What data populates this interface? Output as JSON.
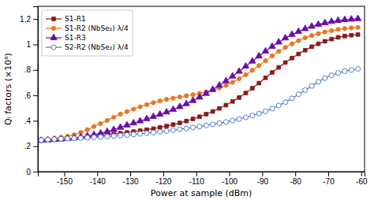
{
  "chart_data": {
    "type": "line",
    "xlabel": "Power at sample (dBm)",
    "ylabel": "Qᵢ factors (×10⁶)",
    "xlim": [
      -158,
      -59
    ],
    "ylim": [
      0,
      1.3
    ],
    "xticks": [
      -150,
      -140,
      -130,
      -120,
      -110,
      -100,
      -90,
      -80,
      -70,
      -60
    ],
    "yticks": [
      0,
      {
        "value": 0.2,
        "label": ".2"
      },
      {
        "value": 0.4,
        "label": ".4"
      },
      {
        "value": 0.6,
        "label": ".6"
      },
      {
        "value": 0.8,
        "label": ".8"
      },
      1,
      1.2
    ],
    "grid": false,
    "legend": "upper left",
    "x": [
      -157,
      -155,
      -153,
      -151,
      -149,
      -147,
      -145,
      -143,
      -141,
      -139,
      -137,
      -135,
      -133,
      -131,
      -129,
      -127,
      -125,
      -123,
      -121,
      -119,
      -117,
      -115,
      -113,
      -111,
      -109,
      -107,
      -105,
      -103,
      -101,
      -99,
      -97,
      -95,
      -93,
      -91,
      -89,
      -87,
      -85,
      -83,
      -81,
      -79,
      -77,
      -75,
      -73,
      -71,
      -69,
      -67,
      -65,
      -63,
      -61
    ],
    "series": [
      {
        "name": "S1-R1",
        "color": "#8B1A1A",
        "marker": "square",
        "values": [
          0.245,
          0.25,
          0.252,
          0.255,
          0.26,
          0.263,
          0.267,
          0.272,
          0.278,
          0.283,
          0.29,
          0.295,
          0.302,
          0.308,
          0.315,
          0.322,
          0.33,
          0.338,
          0.348,
          0.358,
          0.37,
          0.383,
          0.398,
          0.415,
          0.432,
          0.452,
          0.473,
          0.497,
          0.523,
          0.552,
          0.583,
          0.618,
          0.656,
          0.696,
          0.738,
          0.78,
          0.82,
          0.858,
          0.893,
          0.925,
          0.955,
          0.982,
          1.005,
          1.025,
          1.042,
          1.056,
          1.066,
          1.073,
          1.078
        ]
      },
      {
        "name": "S1-R2 (NbSe₂) λ/4",
        "color": "#E87820",
        "marker": "circle",
        "values": [
          0.252,
          0.258,
          0.263,
          0.27,
          0.278,
          0.29,
          0.308,
          0.33,
          0.355,
          0.378,
          0.403,
          0.428,
          0.452,
          0.472,
          0.492,
          0.51,
          0.527,
          0.542,
          0.556,
          0.568,
          0.578,
          0.587,
          0.596,
          0.605,
          0.615,
          0.627,
          0.641,
          0.658,
          0.678,
          0.702,
          0.73,
          0.762,
          0.797,
          0.834,
          0.872,
          0.91,
          0.945,
          0.977,
          1.005,
          1.03,
          1.052,
          1.07,
          1.085,
          1.098,
          1.109,
          1.118,
          1.125,
          1.13,
          1.134
        ]
      },
      {
        "name": "S1-R3",
        "color": "#6A0DAD",
        "marker": "triangle",
        "values": [
          0.245,
          0.248,
          0.252,
          0.255,
          0.26,
          0.265,
          0.272,
          0.28,
          0.29,
          0.302,
          0.315,
          0.33,
          0.348,
          0.365,
          0.382,
          0.398,
          0.415,
          0.432,
          0.45,
          0.468,
          0.488,
          0.51,
          0.533,
          0.558,
          0.585,
          0.614,
          0.645,
          0.678,
          0.713,
          0.75,
          0.788,
          0.828,
          0.868,
          0.908,
          0.947,
          0.984,
          1.018,
          1.05,
          1.078,
          1.102,
          1.123,
          1.142,
          1.157,
          1.169,
          1.18,
          1.188,
          1.194,
          1.198,
          1.202
        ]
      },
      {
        "name": "S2-R2 (NbSe₂) λ/4",
        "color": "#4472C4",
        "marker": "open-circle",
        "values": [
          0.248,
          0.252,
          0.255,
          0.258,
          0.26,
          0.262,
          0.264,
          0.267,
          0.27,
          0.273,
          0.276,
          0.28,
          0.284,
          0.288,
          0.293,
          0.298,
          0.303,
          0.308,
          0.314,
          0.32,
          0.326,
          0.333,
          0.34,
          0.347,
          0.355,
          0.363,
          0.372,
          0.381,
          0.391,
          0.402,
          0.414,
          0.427,
          0.441,
          0.457,
          0.475,
          0.496,
          0.52,
          0.547,
          0.576,
          0.608,
          0.641,
          0.674,
          0.706,
          0.735,
          0.758,
          0.776,
          0.79,
          0.8,
          0.808
        ]
      }
    ]
  }
}
